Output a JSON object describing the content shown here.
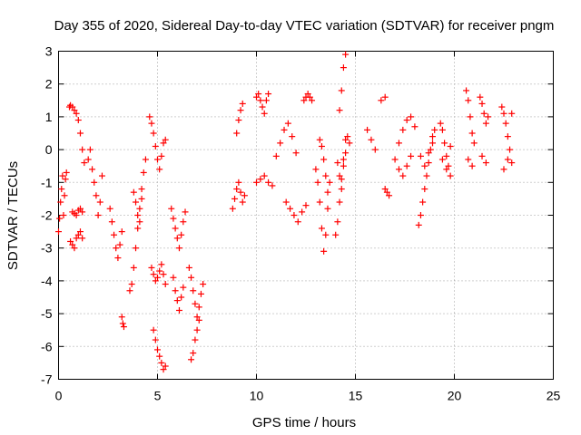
{
  "chart_data": {
    "type": "scatter",
    "title": "Day 355 of 2020, Sidereal Day-to-day VTEC variation (SDTVAR) for receiver pngm",
    "xlabel": "GPS time / hours",
    "ylabel": "SDTVAR / TECUs",
    "xlim": [
      0,
      25
    ],
    "ylim": [
      -7,
      3
    ],
    "xticks": [
      0,
      5,
      10,
      15,
      20,
      25
    ],
    "yticks": [
      -7,
      -6,
      -5,
      -4,
      -3,
      -2,
      -1,
      0,
      1,
      2,
      3
    ],
    "grid": true,
    "marker": "+",
    "color": "#ff0000",
    "series": [
      {
        "name": "SDTVAR",
        "x": [
          0.0,
          0.05,
          0.1,
          0.15,
          0.2,
          0.25,
          0.3,
          0.35,
          0.4,
          0.55,
          0.6,
          0.7,
          0.8,
          0.9,
          1.0,
          1.1,
          1.2,
          1.3,
          0.6,
          0.7,
          0.8,
          0.9,
          1.0,
          1.1,
          1.2,
          0.7,
          0.8,
          0.9,
          1.0,
          1.1,
          1.2,
          1.5,
          1.6,
          1.7,
          1.8,
          1.9,
          2.0,
          2.1,
          2.2,
          2.6,
          2.7,
          2.8,
          2.9,
          3.0,
          3.1,
          3.2,
          3.2,
          3.25,
          3.3,
          3.6,
          3.7,
          3.8,
          3.9,
          4.0,
          4.1,
          4.2,
          4.3,
          4.4,
          3.8,
          3.9,
          4.0,
          4.1,
          4.2,
          4.6,
          4.7,
          4.8,
          4.9,
          5.0,
          5.1,
          5.2,
          5.3,
          5.4,
          4.7,
          4.8,
          4.9,
          5.0,
          5.1,
          5.2,
          5.3,
          5.4,
          4.8,
          4.9,
          5.0,
          5.1,
          5.2,
          5.3,
          5.4,
          5.7,
          5.8,
          5.9,
          6.0,
          6.1,
          6.2,
          6.3,
          6.4,
          5.8,
          5.9,
          6.0,
          6.1,
          6.2,
          6.3,
          6.6,
          6.7,
          6.8,
          6.9,
          7.0,
          7.1,
          7.2,
          7.3,
          6.7,
          6.8,
          6.9,
          7.0,
          7.1,
          8.8,
          8.9,
          9.0,
          9.1,
          9.2,
          9.3,
          9.4,
          9.0,
          9.1,
          9.2,
          9.3,
          10.0,
          10.1,
          10.2,
          10.3,
          10.4,
          10.5,
          10.6,
          10.0,
          10.2,
          10.4,
          10.6,
          10.8,
          11.0,
          11.2,
          11.4,
          11.6,
          11.8,
          12.0,
          11.5,
          11.7,
          11.9,
          12.1,
          12.3,
          12.5,
          12.4,
          12.5,
          12.6,
          12.7,
          12.8,
          13.0,
          13.1,
          13.2,
          13.3,
          13.4,
          13.5,
          13.6,
          13.7,
          13.2,
          13.3,
          13.4,
          13.5,
          13.6,
          14.0,
          14.1,
          14.2,
          14.3,
          14.4,
          14.5,
          14.6,
          14.7,
          14.1,
          14.2,
          14.3,
          14.4,
          14.5,
          14.2,
          14.3,
          14.4,
          14.5,
          15.6,
          15.8,
          16.0,
          16.3,
          16.5,
          16.5,
          16.6,
          16.7,
          17.0,
          17.2,
          17.4,
          17.6,
          17.8,
          18.0,
          17.2,
          17.4,
          17.6,
          17.8,
          18.2,
          18.3,
          18.4,
          18.5,
          18.6,
          18.7,
          18.8,
          18.9,
          19.0,
          18.3,
          18.5,
          18.7,
          18.9,
          19.3,
          19.4,
          19.5,
          19.6,
          19.7,
          19.8,
          19.4,
          19.6,
          19.8,
          20.6,
          20.7,
          20.8,
          20.9,
          21.0,
          20.7,
          20.9,
          21.3,
          21.4,
          21.5,
          21.6,
          21.7,
          21.4,
          21.6,
          22.4,
          22.5,
          22.6,
          22.7,
          22.8,
          22.9,
          22.5,
          22.7,
          22.9
        ],
        "y": [
          -2.5,
          -2.1,
          -1.6,
          -1.2,
          -0.8,
          -2.0,
          -1.4,
          -0.9,
          -0.7,
          1.3,
          1.35,
          1.3,
          1.2,
          1.1,
          0.9,
          0.5,
          0.0,
          -0.4,
          -2.8,
          -2.9,
          -3.0,
          -2.7,
          -2.6,
          -2.5,
          -2.7,
          -1.9,
          -1.95,
          -2.0,
          -1.85,
          -1.8,
          -1.9,
          -0.3,
          0.0,
          -0.6,
          -1.0,
          -1.4,
          -2.0,
          -1.6,
          -0.8,
          -1.8,
          -2.2,
          -2.6,
          -3.0,
          -3.3,
          -2.9,
          -2.5,
          -5.1,
          -5.3,
          -5.4,
          -4.3,
          -4.1,
          -3.6,
          -3.0,
          -2.4,
          -1.8,
          -1.2,
          -0.7,
          -0.3,
          -1.3,
          -1.6,
          -2.0,
          -2.2,
          -1.5,
          1.0,
          0.8,
          0.5,
          0.1,
          -0.3,
          -0.6,
          -0.2,
          0.2,
          0.3,
          -3.6,
          -3.8,
          -4.0,
          -3.9,
          -3.7,
          -3.5,
          -3.8,
          -4.1,
          -5.5,
          -5.8,
          -6.1,
          -6.3,
          -6.5,
          -6.7,
          -6.6,
          -1.8,
          -2.1,
          -2.4,
          -2.7,
          -3.0,
          -2.6,
          -2.2,
          -1.9,
          -3.9,
          -4.3,
          -4.6,
          -4.9,
          -4.5,
          -4.2,
          -3.6,
          -3.9,
          -4.3,
          -4.7,
          -5.1,
          -4.8,
          -4.4,
          -4.1,
          -6.4,
          -6.2,
          -5.8,
          -5.5,
          -5.2,
          -1.8,
          -1.5,
          -1.2,
          -1.0,
          -1.3,
          -1.6,
          -1.4,
          0.5,
          0.9,
          1.2,
          1.4,
          1.6,
          1.7,
          1.5,
          1.3,
          1.1,
          1.5,
          1.7,
          -1.0,
          -0.9,
          -0.8,
          -1.0,
          -1.1,
          -0.2,
          0.2,
          0.6,
          0.8,
          0.4,
          -0.1,
          -1.6,
          -1.8,
          -2.0,
          -2.2,
          -1.9,
          -1.7,
          1.5,
          1.6,
          1.7,
          1.6,
          1.5,
          -0.6,
          -1.0,
          -1.6,
          -2.4,
          -3.1,
          -2.6,
          -1.8,
          -1.0,
          0.3,
          0.1,
          -0.3,
          -0.8,
          -1.3,
          -2.6,
          -2.2,
          -1.6,
          -0.9,
          -0.3,
          0.3,
          0.4,
          0.2,
          -0.4,
          -0.8,
          -1.2,
          -0.5,
          -0.1,
          1.2,
          1.8,
          2.5,
          2.9,
          0.6,
          0.3,
          0.0,
          1.5,
          1.6,
          -1.2,
          -1.3,
          -1.4,
          -0.3,
          0.2,
          0.6,
          0.9,
          1.0,
          0.7,
          -0.6,
          -0.8,
          -0.5,
          -0.2,
          -2.3,
          -2.0,
          -1.6,
          -1.2,
          -0.8,
          -0.4,
          0.0,
          0.4,
          0.6,
          -0.2,
          -0.5,
          -0.1,
          0.2,
          0.8,
          0.6,
          0.2,
          -0.2,
          -0.5,
          -0.8,
          -0.3,
          -0.6,
          0.1,
          1.8,
          1.5,
          1.0,
          0.5,
          0.2,
          -0.3,
          -0.5,
          1.6,
          1.4,
          1.1,
          0.8,
          1.0,
          -0.2,
          -0.4,
          1.3,
          1.1,
          0.8,
          0.4,
          0.0,
          -0.4,
          -0.6,
          -0.3,
          1.1
        ]
      }
    ]
  }
}
